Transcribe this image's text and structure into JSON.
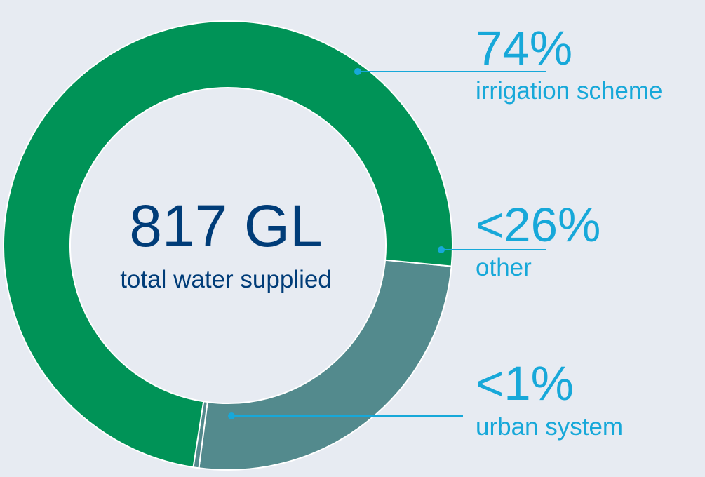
{
  "chart_data": {
    "type": "pie",
    "center": {
      "value": "817 GL",
      "label": "total water supplied"
    },
    "slices": [
      {
        "label": "irrigation scheme",
        "value_text": "74%",
        "value": 74,
        "color": "#009357"
      },
      {
        "label": "other",
        "value_text": "<26%",
        "value": 25.6,
        "color": "#538a8d"
      },
      {
        "label": "urban system",
        "value_text": "<1%",
        "value": 0.4,
        "color": "#538a8d"
      }
    ]
  },
  "colors": {
    "background": "#e7ebf2",
    "center_text": "#003c78",
    "annotation_text": "#17a8d9",
    "leader_line": "#17a8d9",
    "slice_separator": "#ffffff"
  }
}
